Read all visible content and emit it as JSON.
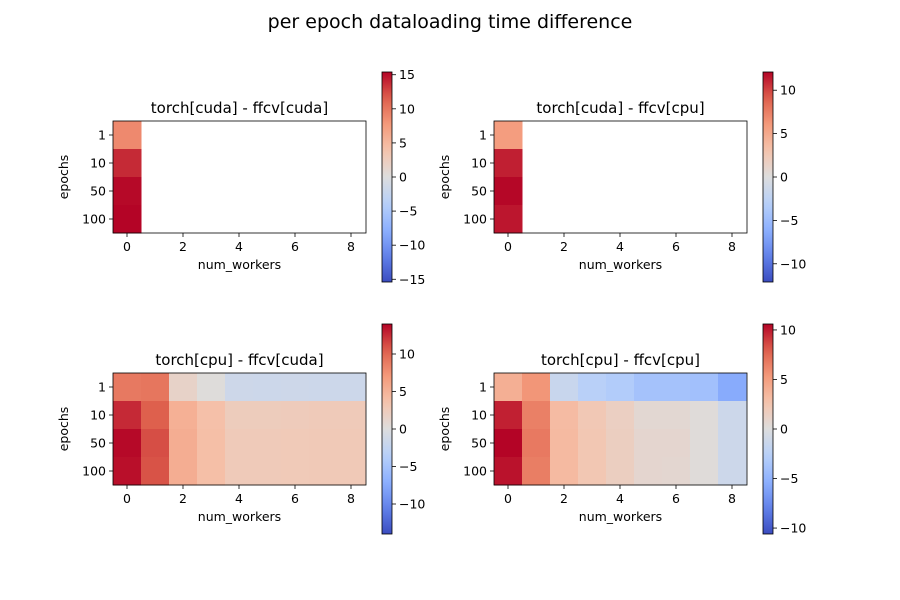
{
  "chart_data": {
    "type": "heatmap",
    "suptitle": "per epoch dataloading time difference",
    "colormap": "coolwarm",
    "panels": [
      {
        "title": "torch[cuda] - ffcv[cuda]",
        "xlabel": "num_workers",
        "ylabel": "epochs",
        "rows": [
          "1",
          "10",
          "50",
          "100"
        ],
        "cols": [
          0,
          1,
          2,
          3,
          4,
          5,
          6,
          7,
          8
        ],
        "xticks": [
          "0",
          "2",
          "4",
          "6",
          "8"
        ],
        "clim": [
          -15.4,
          15.4
        ],
        "cbar_ticks": [
          15,
          10,
          5,
          0,
          -5,
          -10,
          -15
        ],
        "cbar_tick_labels": [
          "15",
          "10",
          "5",
          "0",
          "−5",
          "−10",
          "−15"
        ],
        "values": [
          [
            8.8,
            null,
            null,
            null,
            null,
            null,
            null,
            null,
            null
          ],
          [
            13.8,
            null,
            null,
            null,
            null,
            null,
            null,
            null,
            null
          ],
          [
            15.2,
            null,
            null,
            null,
            null,
            null,
            null,
            null,
            null
          ],
          [
            15.4,
            null,
            null,
            null,
            null,
            null,
            null,
            null,
            null
          ]
        ]
      },
      {
        "title": "torch[cuda] - ffcv[cpu]",
        "xlabel": "num_workers",
        "ylabel": "epochs",
        "rows": [
          "1",
          "10",
          "50",
          "100"
        ],
        "cols": [
          0,
          1,
          2,
          3,
          4,
          5,
          6,
          7,
          8
        ],
        "xticks": [
          "0",
          "2",
          "4",
          "6",
          "8"
        ],
        "clim": [
          -12.1,
          12.1
        ],
        "cbar_ticks": [
          10,
          5,
          0,
          -5,
          -10
        ],
        "cbar_tick_labels": [
          "10",
          "5",
          "0",
          "−5",
          "−10"
        ],
        "values": [
          [
            5.8,
            null,
            null,
            null,
            null,
            null,
            null,
            null,
            null
          ],
          [
            11.2,
            null,
            null,
            null,
            null,
            null,
            null,
            null,
            null
          ],
          [
            12.0,
            null,
            null,
            null,
            null,
            null,
            null,
            null,
            null
          ],
          [
            11.5,
            null,
            null,
            null,
            null,
            null,
            null,
            null,
            null
          ]
        ]
      },
      {
        "title": "torch[cpu] - ffcv[cuda]",
        "xlabel": "num_workers",
        "ylabel": "epochs",
        "rows": [
          "1",
          "10",
          "50",
          "100"
        ],
        "cols": [
          0,
          1,
          2,
          3,
          4,
          5,
          6,
          7,
          8
        ],
        "xticks": [
          "0",
          "2",
          "4",
          "6",
          "8"
        ],
        "clim": [
          -14.0,
          14.0
        ],
        "cbar_ticks": [
          10,
          5,
          0,
          -5,
          -10
        ],
        "cbar_tick_labels": [
          "10",
          "5",
          "0",
          "−5",
          "−10"
        ],
        "values": [
          [
            9.0,
            9.2,
            1.5,
            0.2,
            -1.5,
            -1.6,
            -1.5,
            -1.6,
            -1.6
          ],
          [
            12.6,
            10.5,
            5.2,
            3.8,
            2.4,
            2.4,
            2.5,
            2.6,
            2.6
          ],
          [
            13.8,
            11.2,
            5.4,
            3.9,
            2.6,
            2.6,
            2.7,
            2.8,
            2.8
          ],
          [
            13.6,
            11.0,
            5.4,
            3.9,
            2.6,
            2.6,
            2.7,
            2.8,
            2.8
          ]
        ]
      },
      {
        "title": "torch[cpu] - ffcv[cpu]",
        "xlabel": "num_workers",
        "ylabel": "epochs",
        "rows": [
          "1",
          "10",
          "50",
          "100"
        ],
        "cols": [
          0,
          1,
          2,
          3,
          4,
          5,
          6,
          7,
          8
        ],
        "xticks": [
          "0",
          "2",
          "4",
          "6",
          "8"
        ],
        "clim": [
          -10.6,
          10.6
        ],
        "cbar_ticks": [
          10,
          5,
          0,
          -5,
          -10
        ],
        "cbar_tick_labels": [
          "10",
          "5",
          "0",
          "−5",
          "−10"
        ],
        "values": [
          [
            4.0,
            5.5,
            -1.5,
            -2.6,
            -3.0,
            -3.8,
            -3.8,
            -4.0,
            -5.6
          ],
          [
            9.8,
            6.5,
            3.2,
            2.2,
            1.5,
            0.6,
            0.6,
            0.2,
            -1.2
          ],
          [
            10.6,
            6.8,
            3.3,
            2.3,
            1.6,
            0.8,
            0.8,
            0.2,
            -1.2
          ],
          [
            10.2,
            6.6,
            3.3,
            2.3,
            1.6,
            0.8,
            0.7,
            0.2,
            -1.2
          ]
        ]
      }
    ]
  }
}
